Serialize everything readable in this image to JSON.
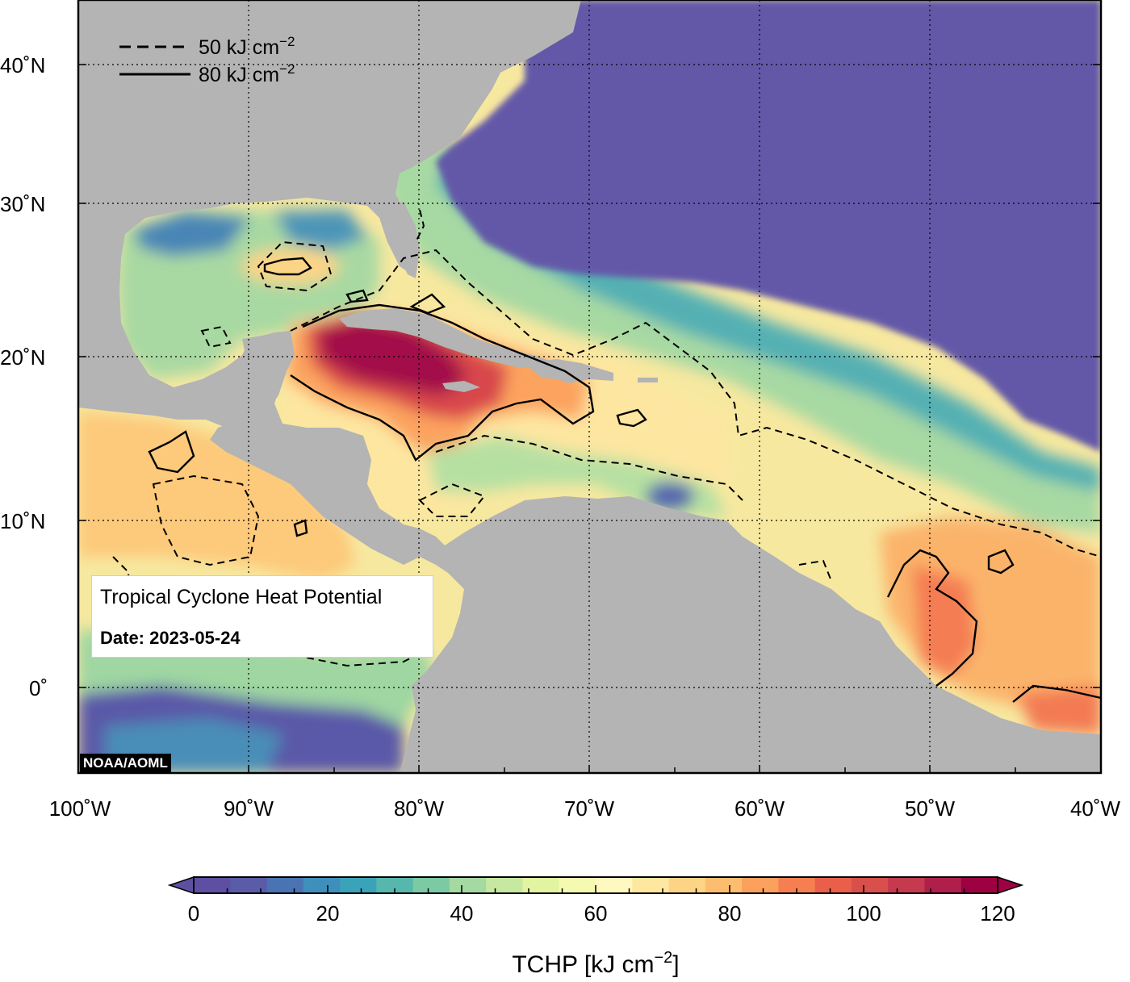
{
  "info_box": {
    "title": "Tropical Cyclone Heat Potential",
    "date": "Date: 2023-05-24"
  },
  "credit": "NOAA/AOML",
  "legend": {
    "dashed_label": "50 kJ cm",
    "solid_label": "80 kJ cm",
    "unit_exponent": "−2"
  },
  "axes": {
    "x_ticks": [
      "100˚W",
      "90˚W",
      "80˚W",
      "70˚W",
      "60˚W",
      "50˚W",
      "40˚W"
    ],
    "y_ticks": [
      "40˚N",
      "30˚N",
      "20˚N",
      "10˚N",
      "0˚"
    ]
  },
  "colorbar": {
    "title_prefix": "TCHP [kJ cm",
    "title_exponent": "−2",
    "title_suffix": "]",
    "tick_labels": [
      "0",
      "20",
      "40",
      "60",
      "80",
      "100",
      "120"
    ],
    "min": 0,
    "max": 120,
    "step": 5,
    "colors": [
      "#5e4fa2",
      "#5a5ca8",
      "#4a73b3",
      "#3f8fbd",
      "#3aa3b9",
      "#56b7ac",
      "#7ccaa3",
      "#a4daa2",
      "#c6e8a0",
      "#e2f3a2",
      "#f4fbb0",
      "#fff8bf",
      "#fee8a0",
      "#fdd485",
      "#fdbd6e",
      "#fca05e",
      "#f67f52",
      "#ea5f4a",
      "#d94f4b",
      "#c53a4f",
      "#b01f4c",
      "#9e0142"
    ]
  },
  "colors": {
    "land": "#b4b4b4",
    "deep_ocean": "#6459a8",
    "warm_core": "#a3104a"
  }
}
